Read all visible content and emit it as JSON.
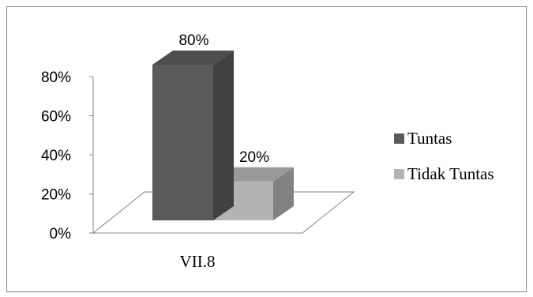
{
  "chart_data": {
    "type": "bar",
    "style": "3d-column",
    "categories": [
      "VII.8"
    ],
    "series": [
      {
        "name": "Tuntas",
        "values": [
          0.8
        ],
        "label": "80%",
        "color": "#5a5a5a"
      },
      {
        "name": "Tidak Tuntas",
        "values": [
          0.2
        ],
        "label": "20%",
        "color": "#b4b4b4"
      }
    ],
    "y_ticks": [
      "0%",
      "20%",
      "40%",
      "60%",
      "80%"
    ],
    "ylim": [
      0,
      0.8
    ],
    "grid": false,
    "legend_position": "right",
    "title": "",
    "xlabel": "",
    "ylabel": ""
  }
}
